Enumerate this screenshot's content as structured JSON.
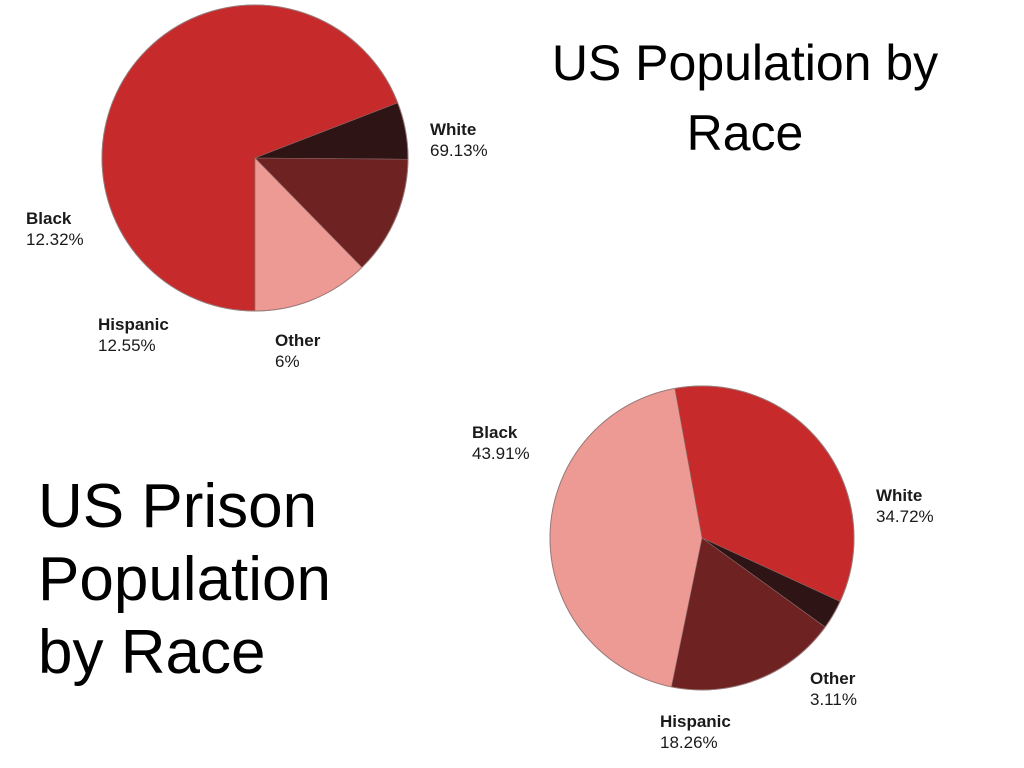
{
  "titles": {
    "general_line1": "US Population by",
    "general_line2": "Race",
    "prison_line1": "US Prison",
    "prison_line2": "Population",
    "prison_line3": "by Race"
  },
  "colors": {
    "white": "#c62a2a",
    "black": "#ee9a94",
    "hispanic": "#6e2222",
    "other": "#2e1414"
  },
  "chart_data": [
    {
      "type": "pie",
      "title": "US Population by Race",
      "slices": [
        {
          "name": "White",
          "value": 69.13,
          "label": "69.13%"
        },
        {
          "name": "Other",
          "value": 6,
          "label": "6%"
        },
        {
          "name": "Hispanic",
          "value": 12.55,
          "label": "12.55%"
        },
        {
          "name": "Black",
          "value": 12.32,
          "label": "12.32%"
        }
      ]
    },
    {
      "type": "pie",
      "title": "US Prison Population by Race",
      "slices": [
        {
          "name": "White",
          "value": 34.72,
          "label": "34.72%"
        },
        {
          "name": "Other",
          "value": 3.11,
          "label": "3.11%"
        },
        {
          "name": "Hispanic",
          "value": 18.26,
          "label": "18.26%"
        },
        {
          "name": "Black",
          "value": 43.91,
          "label": "43.91%"
        }
      ]
    }
  ]
}
